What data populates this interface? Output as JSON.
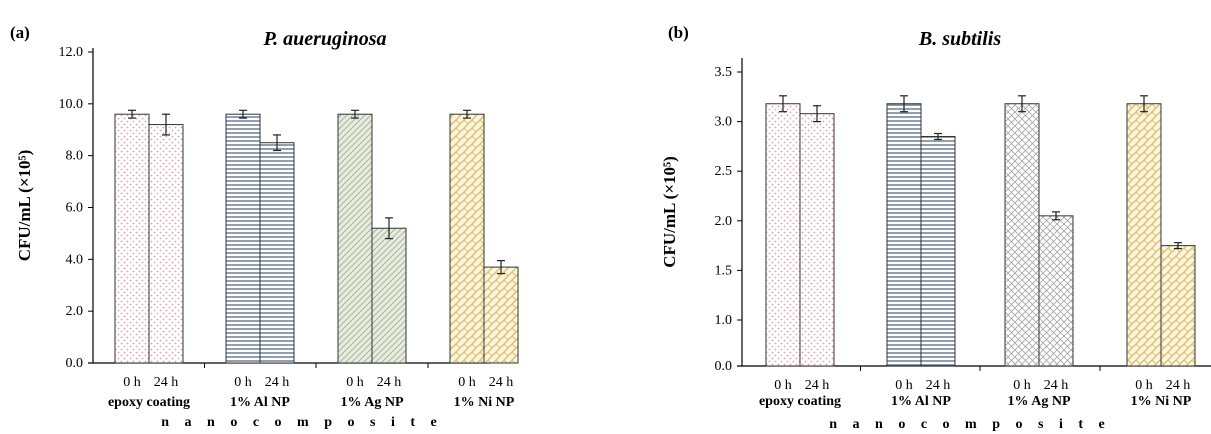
{
  "colors": {
    "epoxy_coating": "#d9a0a8",
    "al_np": "#4a5f80",
    "ag_np": "#a6b89a",
    "ni_np": "#d9bd6a"
  },
  "chart_data": [
    {
      "type": "bar",
      "panel": "(a)",
      "title": "P. aueruginosa",
      "ylabel": "CFU/mL (×10⁵)",
      "xlabel": "n a n o c o m p o s i t e",
      "ylim": [
        0,
        12
      ],
      "yticks": [
        "0.0",
        "2.0",
        "4.0",
        "6.0",
        "8.0",
        "10.0",
        "12.0"
      ],
      "categories": [
        "epoxy coating",
        "1% Al NP",
        "1% Ag NP",
        "1% Ni NP"
      ],
      "series": [
        {
          "label": "0 h",
          "values": [
            9.6,
            9.6,
            9.6,
            9.6
          ],
          "errors": [
            0.15,
            0.15,
            0.15,
            0.15
          ]
        },
        {
          "label": "24 h",
          "values": [
            9.2,
            8.5,
            5.2,
            3.7
          ],
          "errors": [
            0.4,
            0.3,
            0.4,
            0.25
          ]
        }
      ],
      "grid": false
    },
    {
      "type": "bar",
      "panel": "(b)",
      "title": "B. subtilis",
      "ylabel": "CFU/mL (×10⁵)",
      "xlabel": "n a n o c o m p o s i t e",
      "ylim": [
        0,
        3.5
      ],
      "yticks": [
        "0.0",
        "1.0",
        "1.5",
        "2.0",
        "2.5",
        "3.0",
        "3.5"
      ],
      "categories": [
        "epoxy coating",
        "1% Al NP",
        "1% Ag NP",
        "1% Ni NP"
      ],
      "series": [
        {
          "label": "0 h",
          "values": [
            3.18,
            3.18,
            3.18,
            3.18
          ],
          "errors": [
            0.08,
            0.08,
            0.08,
            0.08
          ]
        },
        {
          "label": "24 h",
          "values": [
            3.08,
            2.85,
            2.05,
            1.75
          ],
          "errors": [
            0.08,
            0.03,
            0.04,
            0.03
          ]
        }
      ],
      "grid": false
    }
  ]
}
